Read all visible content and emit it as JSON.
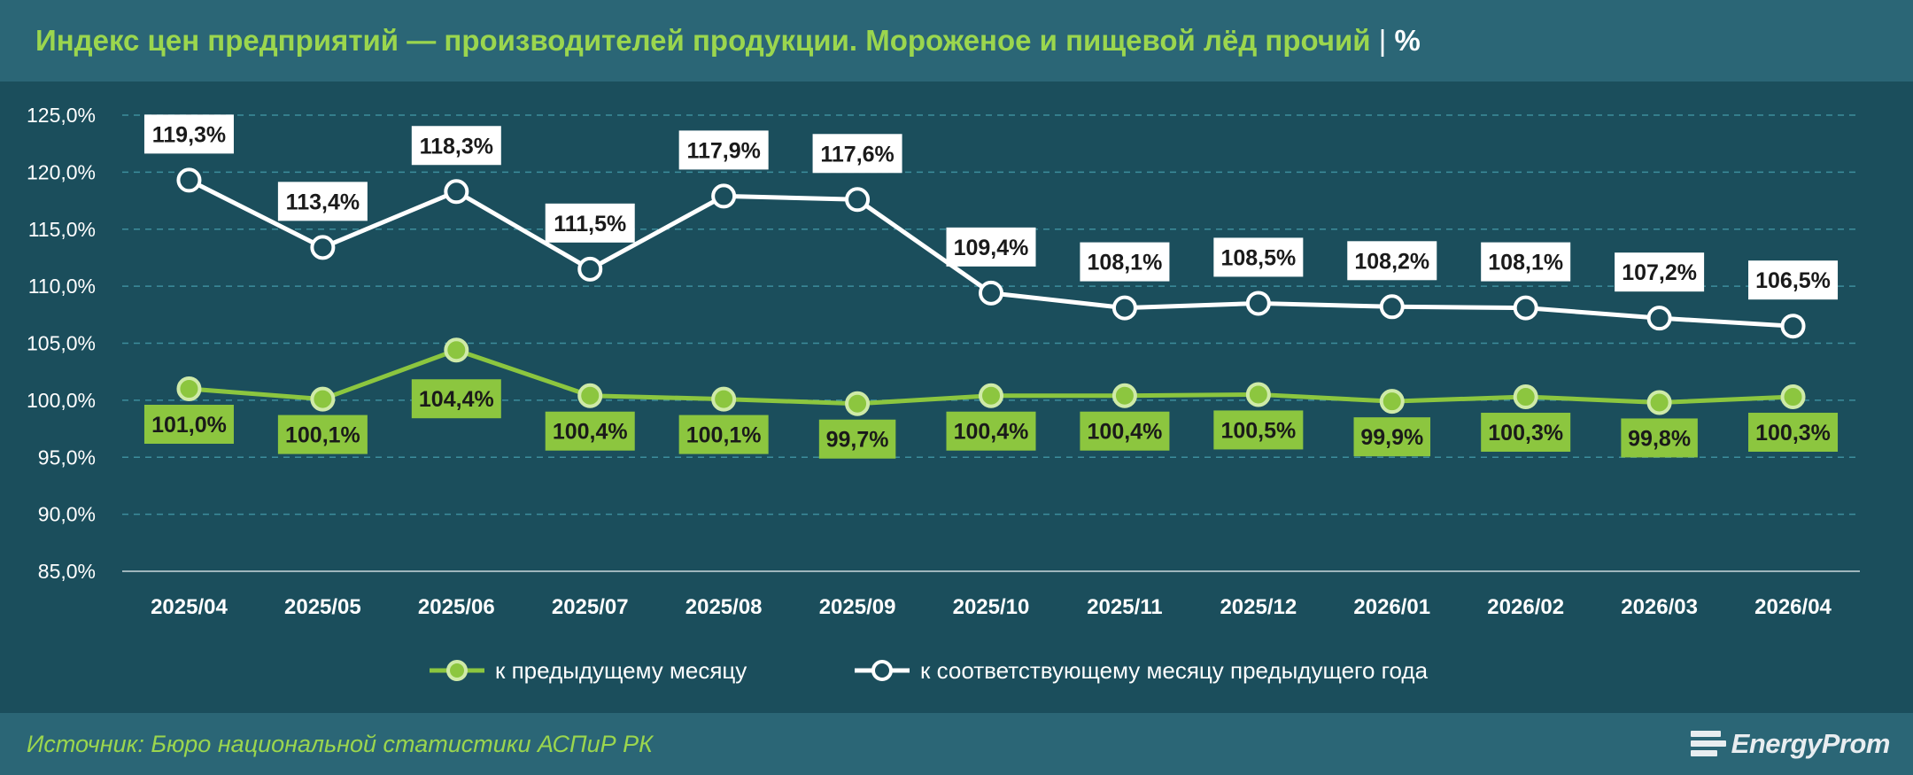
{
  "title": {
    "main": "Индекс цен предприятий — производителей продукции. Мороженое и пищевой лёд прочий",
    "separator": "|",
    "unit": "%"
  },
  "source": "Источник: Бюро национальной статистики АСПиР РК",
  "logo_text": "EnergyProm",
  "colors": {
    "background": "#1b4e5c",
    "header": "#2b6676",
    "green": "#8cc63f",
    "white": "#ffffff",
    "grid": "#3d8d9c",
    "title": "#9bd64e"
  },
  "chart_data": {
    "type": "line",
    "categories": [
      "2025/04",
      "2025/05",
      "2025/06",
      "2025/07",
      "2025/08",
      "2025/09",
      "2025/10",
      "2025/11",
      "2025/12",
      "2026/01",
      "2026/02",
      "2026/03",
      "2026/04"
    ],
    "y_ticks": [
      "85,0%",
      "90,0%",
      "95,0%",
      "100,0%",
      "105,0%",
      "110,0%",
      "115,0%",
      "120,0%",
      "125,0%"
    ],
    "ylim": [
      85,
      125
    ],
    "grid": true,
    "legend_position": "bottom",
    "series": [
      {
        "name": "к предыдущему месяцу",
        "color": "#8cc63f",
        "values": [
          101.0,
          100.1,
          104.4,
          100.4,
          100.1,
          99.7,
          100.4,
          100.4,
          100.5,
          99.9,
          100.3,
          99.8,
          100.3
        ],
        "labels": [
          "101,0%",
          "100,1%",
          "104,4%",
          "100,4%",
          "100,1%",
          "99,7%",
          "100,4%",
          "100,4%",
          "100,5%",
          "99,9%",
          "100,3%",
          "99,8%",
          "100,3%"
        ]
      },
      {
        "name": "к соответствующему месяцу предыдущего года",
        "color": "#ffffff",
        "values": [
          119.3,
          113.4,
          118.3,
          111.5,
          117.9,
          117.6,
          109.4,
          108.1,
          108.5,
          108.2,
          108.1,
          107.2,
          106.5
        ],
        "labels": [
          "119,3%",
          "113,4%",
          "118,3%",
          "111,5%",
          "117,9%",
          "117,6%",
          "109,4%",
          "108,1%",
          "108,5%",
          "108,2%",
          "108,1%",
          "107,2%",
          "106,5%"
        ]
      }
    ]
  }
}
